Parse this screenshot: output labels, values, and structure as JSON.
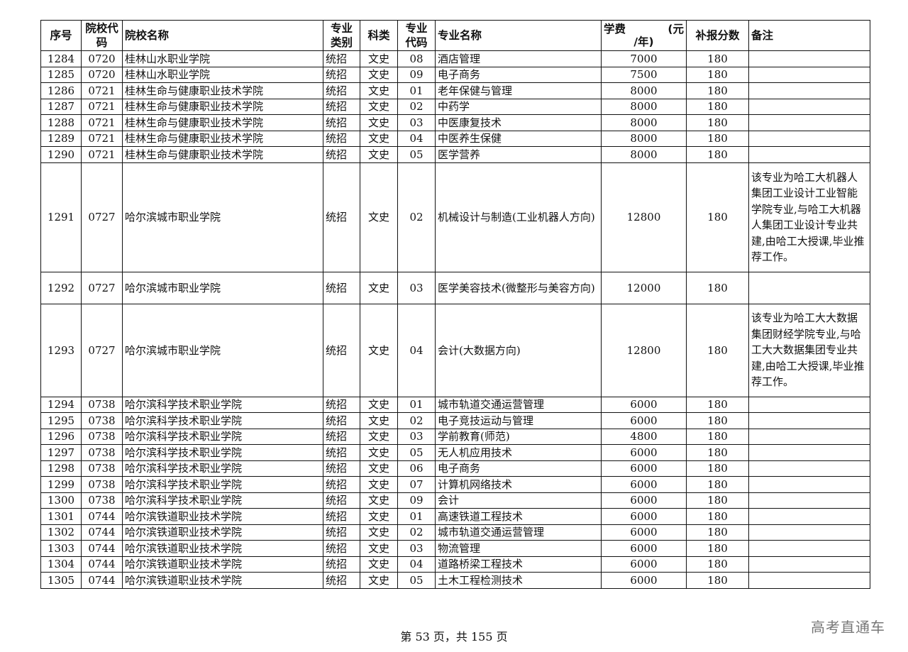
{
  "header": {
    "seq": "序号",
    "school_code": "院校代码",
    "school_name": "院校名称",
    "major_type": "专业类别",
    "subject": "科类",
    "major_code": "专业代码",
    "major_name": "专业名称",
    "fee_a": "学费",
    "fee_b": "(元",
    "fee_c": "/年)",
    "score": "补报分数",
    "note": "备注"
  },
  "rows": [
    [
      "1284",
      "0720",
      "桂林山水职业学院",
      "统招",
      "文史",
      "08",
      "酒店管理",
      "7000",
      "180",
      ""
    ],
    [
      "1285",
      "0720",
      "桂林山水职业学院",
      "统招",
      "文史",
      "09",
      "电子商务",
      "7500",
      "180",
      ""
    ],
    [
      "1286",
      "0721",
      "桂林生命与健康职业技术学院",
      "统招",
      "文史",
      "01",
      "老年保健与管理",
      "8000",
      "180",
      ""
    ],
    [
      "1287",
      "0721",
      "桂林生命与健康职业技术学院",
      "统招",
      "文史",
      "02",
      "中药学",
      "8000",
      "180",
      ""
    ],
    [
      "1288",
      "0721",
      "桂林生命与健康职业技术学院",
      "统招",
      "文史",
      "03",
      "中医康复技术",
      "8000",
      "180",
      ""
    ],
    [
      "1289",
      "0721",
      "桂林生命与健康职业技术学院",
      "统招",
      "文史",
      "04",
      "中医养生保健",
      "8000",
      "180",
      ""
    ],
    [
      "1290",
      "0721",
      "桂林生命与健康职业技术学院",
      "统招",
      "文史",
      "05",
      "医学营养",
      "8000",
      "180",
      ""
    ],
    [
      "1291",
      "0727",
      "哈尔滨城市职业学院",
      "统招",
      "文史",
      "02",
      "机械设计与制造(工业机器人方向)",
      "12800",
      "180",
      "该专业为哈工大机器人集团工业设计工业智能学院专业,与哈工大机器人集团工业设计专业共建,由哈工大授课,毕业推荐工作。"
    ],
    [
      "1292",
      "0727",
      "哈尔滨城市职业学院",
      "统招",
      "文史",
      "03",
      "医学美容技术(微整形与美容方向)",
      "12000",
      "180",
      ""
    ],
    [
      "1293",
      "0727",
      "哈尔滨城市职业学院",
      "统招",
      "文史",
      "04",
      "会计(大数据方向)",
      "12800",
      "180",
      "该专业为哈工大大数据集团财经学院专业,与哈工大大数据集团专业共建,由哈工大授课,毕业推荐工作。"
    ],
    [
      "1294",
      "0738",
      "哈尔滨科学技术职业学院",
      "统招",
      "文史",
      "01",
      "城市轨道交通运营管理",
      "6000",
      "180",
      ""
    ],
    [
      "1295",
      "0738",
      "哈尔滨科学技术职业学院",
      "统招",
      "文史",
      "02",
      "电子竞技运动与管理",
      "6000",
      "180",
      ""
    ],
    [
      "1296",
      "0738",
      "哈尔滨科学技术职业学院",
      "统招",
      "文史",
      "03",
      "学前教育(师范)",
      "4800",
      "180",
      ""
    ],
    [
      "1297",
      "0738",
      "哈尔滨科学技术职业学院",
      "统招",
      "文史",
      "05",
      "无人机应用技术",
      "6000",
      "180",
      ""
    ],
    [
      "1298",
      "0738",
      "哈尔滨科学技术职业学院",
      "统招",
      "文史",
      "06",
      "电子商务",
      "6000",
      "180",
      ""
    ],
    [
      "1299",
      "0738",
      "哈尔滨科学技术职业学院",
      "统招",
      "文史",
      "07",
      "计算机网络技术",
      "6000",
      "180",
      ""
    ],
    [
      "1300",
      "0738",
      "哈尔滨科学技术职业学院",
      "统招",
      "文史",
      "09",
      "会计",
      "6000",
      "180",
      ""
    ],
    [
      "1301",
      "0744",
      "哈尔滨铁道职业技术学院",
      "统招",
      "文史",
      "01",
      "高速铁道工程技术",
      "6000",
      "180",
      ""
    ],
    [
      "1302",
      "0744",
      "哈尔滨铁道职业技术学院",
      "统招",
      "文史",
      "02",
      "城市轨道交通运营管理",
      "6000",
      "180",
      ""
    ],
    [
      "1303",
      "0744",
      "哈尔滨铁道职业技术学院",
      "统招",
      "文史",
      "03",
      "物流管理",
      "6000",
      "180",
      ""
    ],
    [
      "1304",
      "0744",
      "哈尔滨铁道职业技术学院",
      "统招",
      "文史",
      "04",
      "道路桥梁工程技术",
      "6000",
      "180",
      ""
    ],
    [
      "1305",
      "0744",
      "哈尔滨铁道职业技术学院",
      "统招",
      "文史",
      "05",
      "土木工程检测技术",
      "6000",
      "180",
      ""
    ]
  ],
  "footer": "第 53 页，共 155 页",
  "watermark": "高考直通车"
}
